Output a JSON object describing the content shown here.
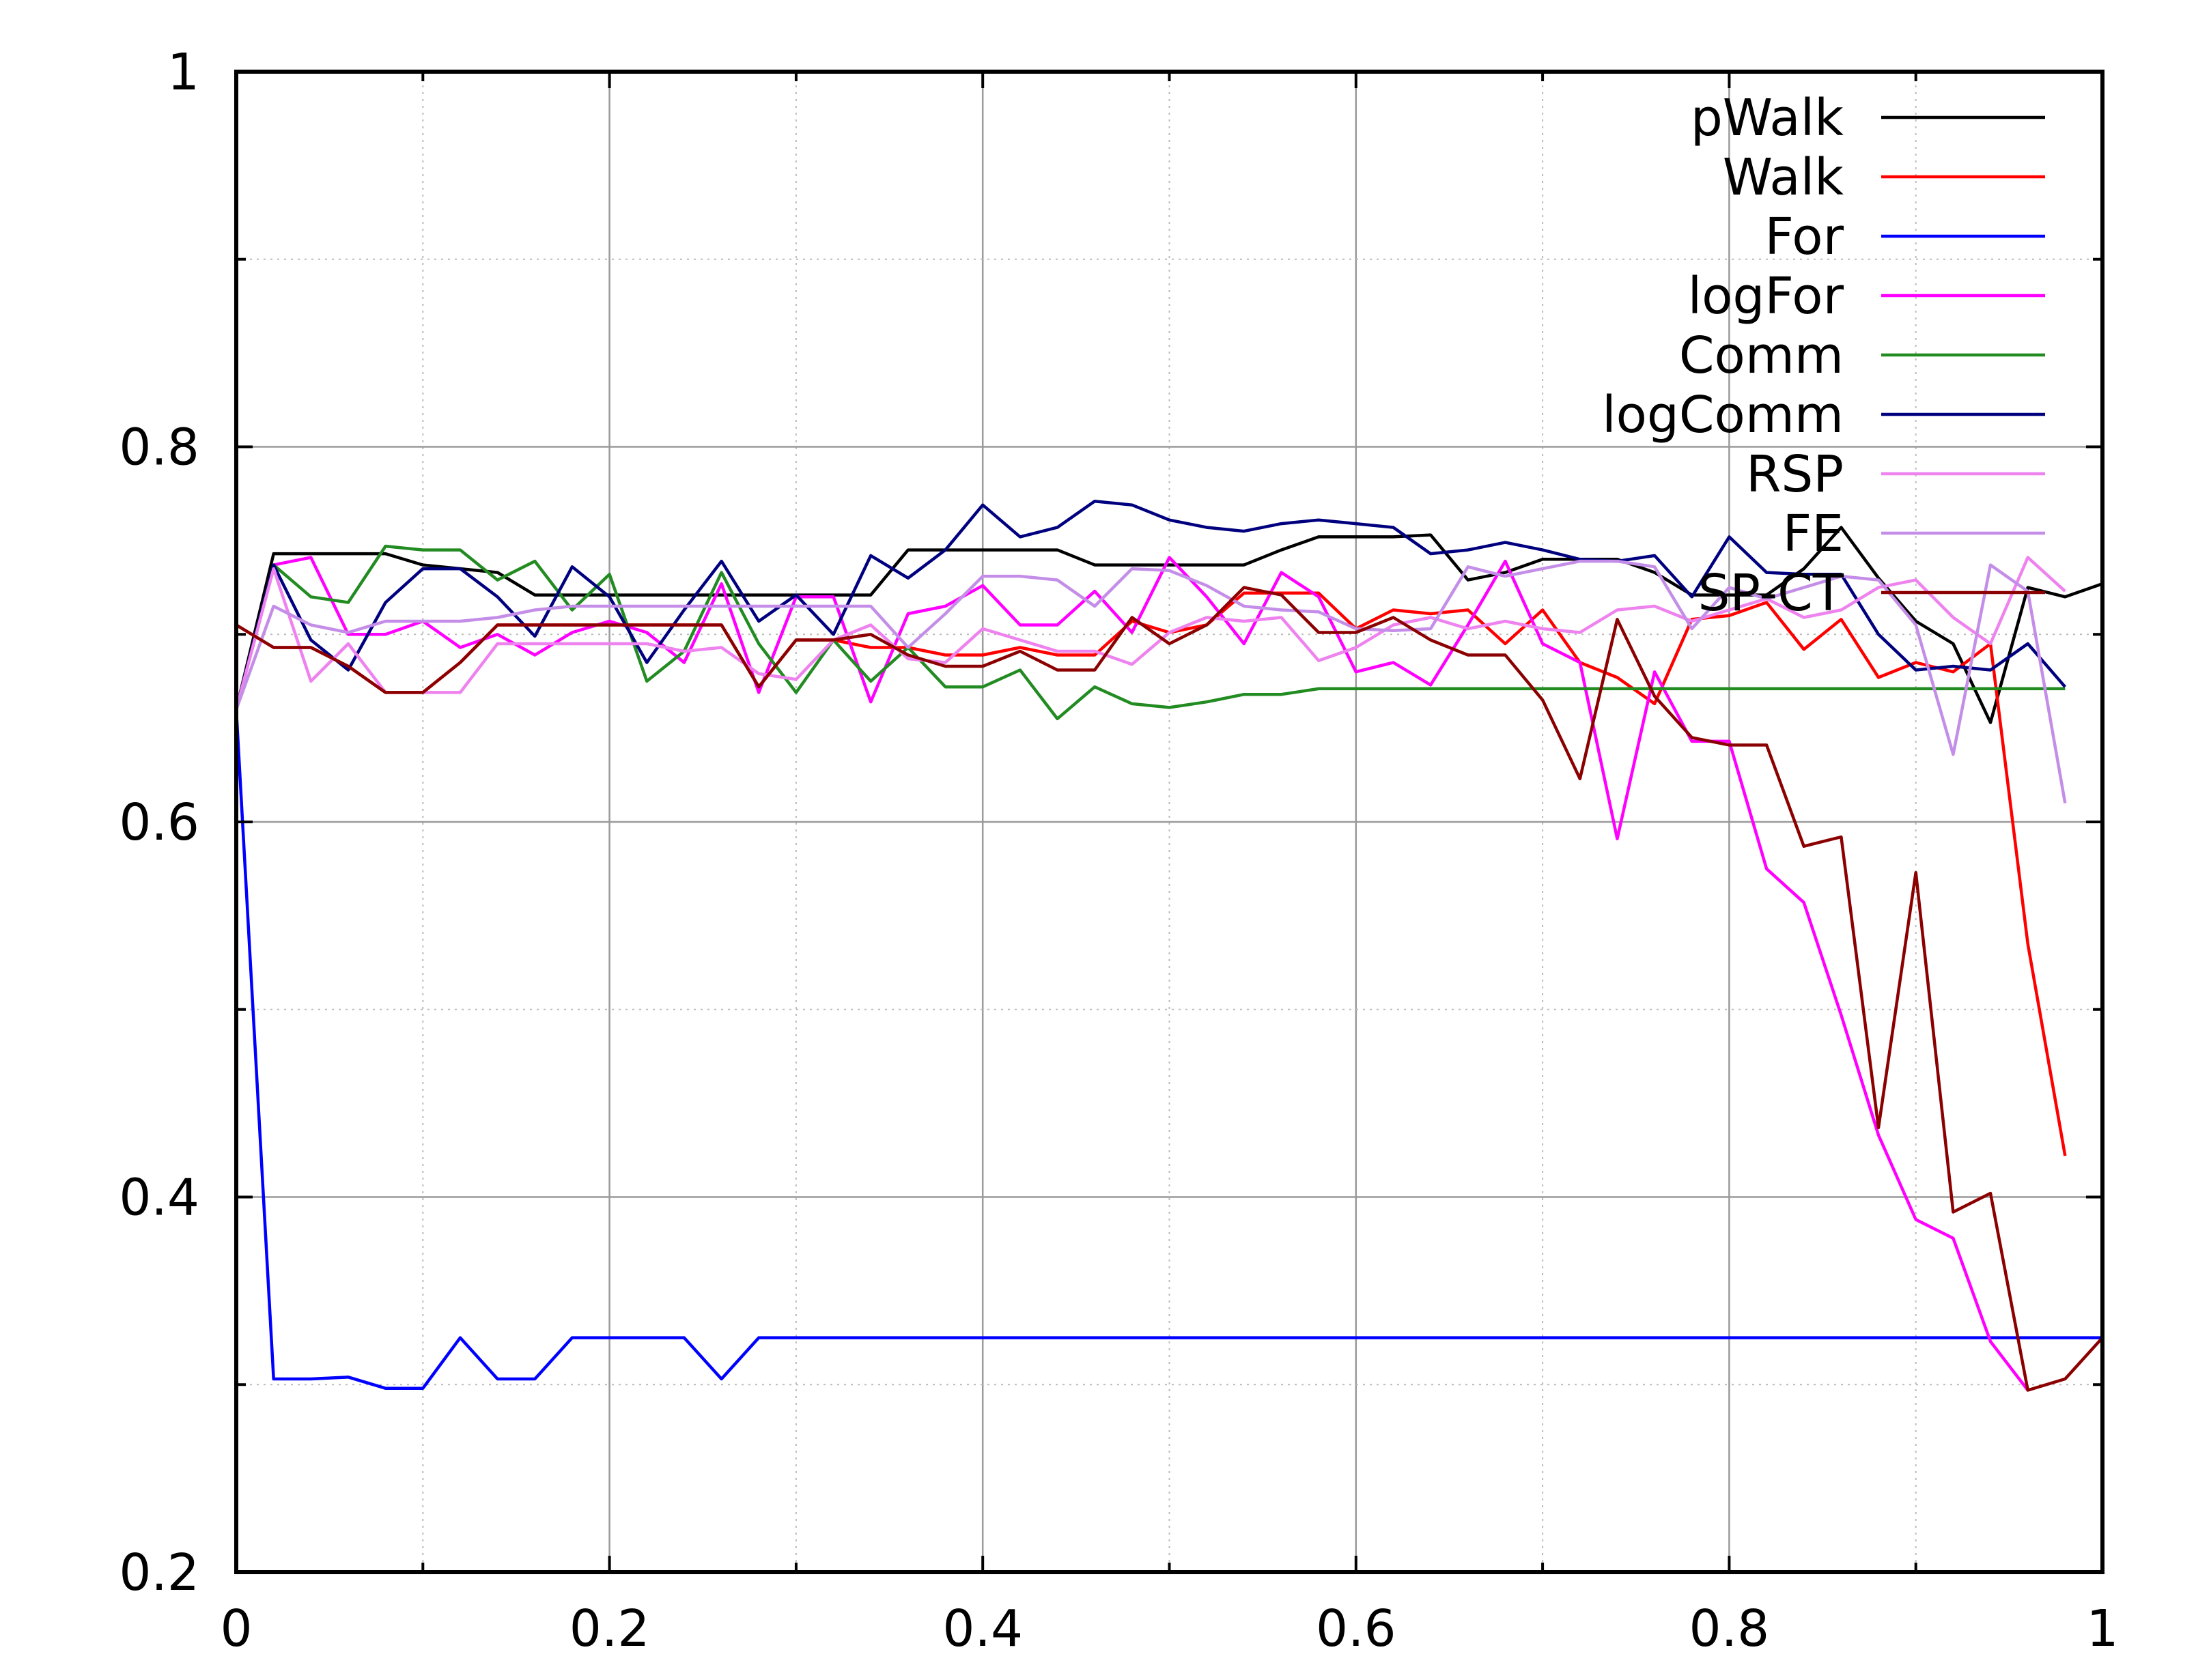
{
  "chart_data": {
    "type": "line",
    "title": "",
    "xlabel": "",
    "ylabel": "",
    "xlim": [
      0,
      1
    ],
    "ylim": [
      0.2,
      1
    ],
    "grid": true,
    "legend_position": "top-right",
    "x_ticks": [
      "0",
      "0.2",
      "0.4",
      "0.6",
      "0.8",
      "1"
    ],
    "y_ticks": [
      "0.2",
      "0.4",
      "0.6",
      "0.8",
      "1"
    ],
    "x": [
      0,
      0.02,
      0.04,
      0.06,
      0.08,
      0.1,
      0.12,
      0.14,
      0.16,
      0.18,
      0.2,
      0.22,
      0.24,
      0.26,
      0.28,
      0.3,
      0.32,
      0.34,
      0.36,
      0.38,
      0.4,
      0.42,
      0.44,
      0.46,
      0.48,
      0.5,
      0.52,
      0.54,
      0.56,
      0.58,
      0.6,
      0.62,
      0.64,
      0.66,
      0.68,
      0.7,
      0.72,
      0.74,
      0.76,
      0.78,
      0.8,
      0.82,
      0.84,
      0.86,
      0.88,
      0.9,
      0.92,
      0.94,
      0.96,
      0.98,
      1.0
    ],
    "series": [
      {
        "name": "pWalk",
        "color": "#000000",
        "values": [
          0.66,
          0.743,
          0.743,
          0.743,
          0.743,
          0.737,
          0.735,
          0.733,
          0.721,
          0.721,
          0.721,
          0.721,
          0.721,
          0.721,
          0.721,
          0.721,
          0.721,
          0.721,
          0.745,
          0.745,
          0.745,
          0.745,
          0.745,
          0.737,
          0.737,
          0.737,
          0.737,
          0.737,
          0.745,
          0.752,
          0.752,
          0.752,
          0.753,
          0.729,
          0.733,
          0.74,
          0.74,
          0.74,
          0.733,
          0.721,
          0.721,
          0.721,
          0.735,
          0.757,
          0.73,
          0.707,
          0.695,
          0.653,
          0.725,
          0.72,
          0.727
        ]
      },
      {
        "name": "Walk",
        "color": "#ff0000",
        "values": [
          0.705,
          0.693,
          0.693,
          0.683,
          0.669,
          0.669,
          0.685,
          0.705,
          0.705,
          0.705,
          0.705,
          0.705,
          0.705,
          0.705,
          0.672,
          0.697,
          0.697,
          0.693,
          0.693,
          0.689,
          0.689,
          0.693,
          0.689,
          0.689,
          0.707,
          0.701,
          0.705,
          0.722,
          0.722,
          0.722,
          0.703,
          0.713,
          0.711,
          0.713,
          0.695,
          0.713,
          0.685,
          0.677,
          0.663,
          0.708,
          0.71,
          0.717,
          0.692,
          0.708,
          0.677,
          0.685,
          0.68,
          0.695,
          0.535,
          0.422,
          null
        ]
      },
      {
        "name": "For",
        "color": "#0000ff",
        "values": [
          0.66,
          0.303,
          0.303,
          0.304,
          0.298,
          0.298,
          0.325,
          0.303,
          0.303,
          0.325,
          0.325,
          0.325,
          0.325,
          0.303,
          0.325,
          0.325,
          0.325,
          0.325,
          0.325,
          0.325,
          0.325,
          0.325,
          0.325,
          0.325,
          0.325,
          0.325,
          0.325,
          0.325,
          0.325,
          0.325,
          0.325,
          0.325,
          0.325,
          0.325,
          0.325,
          0.325,
          0.325,
          0.325,
          0.325,
          0.325,
          0.325,
          0.325,
          0.325,
          0.325,
          0.325,
          0.325,
          0.325,
          0.325,
          0.325,
          0.325,
          0.325
        ]
      },
      {
        "name": "logFor",
        "color": "#ff00ff",
        "values": [
          0.66,
          0.737,
          0.741,
          0.7,
          0.7,
          0.707,
          0.693,
          0.7,
          0.689,
          0.701,
          0.707,
          0.701,
          0.685,
          0.727,
          0.669,
          0.72,
          0.72,
          0.664,
          0.711,
          0.715,
          0.726,
          0.705,
          0.705,
          0.723,
          0.701,
          0.741,
          0.72,
          0.695,
          0.733,
          0.72,
          0.68,
          0.685,
          0.673,
          0.705,
          0.739,
          0.695,
          0.685,
          0.591,
          0.68,
          0.643,
          0.643,
          0.575,
          0.557,
          0.497,
          0.433,
          0.388,
          0.378,
          0.323,
          0.297,
          null,
          null
        ]
      },
      {
        "name": "Comm",
        "color": "#228b22",
        "values": [
          0.66,
          0.737,
          0.72,
          0.717,
          0.747,
          0.745,
          0.745,
          0.729,
          0.739,
          0.713,
          0.732,
          0.675,
          0.691,
          0.733,
          0.695,
          0.669,
          0.697,
          0.675,
          0.693,
          0.672,
          0.672,
          0.681,
          0.655,
          0.672,
          0.663,
          0.661,
          0.664,
          0.668,
          0.668,
          0.671,
          0.671,
          0.671,
          0.671,
          0.671,
          0.671,
          0.671,
          0.671,
          0.671,
          0.671,
          0.671,
          0.671,
          0.671,
          0.671,
          0.671,
          0.671,
          0.671,
          0.671,
          0.671,
          0.671,
          0.671,
          null
        ]
      },
      {
        "name": "logComm",
        "color": "#00007f",
        "values": [
          0.66,
          0.737,
          0.697,
          0.681,
          0.717,
          0.735,
          0.735,
          0.72,
          0.699,
          0.736,
          0.72,
          0.685,
          0.713,
          0.739,
          0.707,
          0.721,
          0.7,
          0.742,
          0.73,
          0.745,
          0.769,
          0.752,
          0.757,
          0.771,
          0.769,
          0.761,
          0.757,
          0.755,
          0.759,
          0.761,
          0.759,
          0.757,
          0.743,
          0.745,
          0.749,
          0.745,
          0.74,
          0.739,
          0.742,
          0.72,
          0.752,
          0.733,
          0.732,
          0.732,
          0.7,
          0.681,
          0.683,
          0.681,
          0.695,
          0.672,
          null
        ]
      },
      {
        "name": "RSP",
        "color": "#ee82ee",
        "values": [
          0.66,
          0.735,
          0.675,
          0.695,
          0.669,
          0.669,
          0.669,
          0.695,
          0.695,
          0.695,
          0.695,
          0.695,
          0.691,
          0.693,
          0.679,
          0.676,
          0.697,
          0.705,
          0.687,
          0.685,
          0.703,
          0.697,
          0.691,
          0.691,
          0.684,
          0.701,
          0.709,
          0.707,
          0.709,
          0.686,
          0.693,
          0.705,
          0.709,
          0.703,
          0.707,
          0.703,
          0.701,
          0.713,
          0.715,
          0.707,
          0.713,
          0.719,
          0.709,
          0.713,
          0.725,
          0.729,
          0.709,
          0.695,
          0.741,
          0.723,
          null
        ]
      },
      {
        "name": "FE",
        "color": "#c48ee8",
        "values": [
          0.66,
          0.715,
          0.705,
          0.701,
          0.707,
          0.707,
          0.707,
          0.709,
          0.713,
          0.715,
          0.715,
          0.715,
          0.715,
          0.715,
          0.715,
          0.715,
          0.715,
          0.715,
          0.693,
          0.711,
          0.731,
          0.731,
          0.729,
          0.715,
          0.735,
          0.734,
          0.726,
          0.715,
          0.713,
          0.712,
          0.703,
          0.702,
          0.703,
          0.736,
          0.731,
          0.735,
          0.739,
          0.739,
          0.736,
          0.703,
          0.725,
          0.719,
          0.725,
          0.731,
          0.729,
          0.705,
          0.636,
          0.737,
          0.723,
          0.61,
          null
        ]
      },
      {
        "name": "SP-CT",
        "color": "#8b0000",
        "values": [
          0.705,
          0.693,
          0.693,
          0.683,
          0.669,
          0.669,
          0.685,
          0.705,
          0.705,
          0.705,
          0.705,
          0.705,
          0.705,
          0.705,
          0.672,
          0.697,
          0.697,
          0.7,
          0.689,
          0.683,
          0.683,
          0.691,
          0.681,
          0.681,
          0.709,
          0.695,
          0.705,
          0.725,
          0.721,
          0.701,
          0.701,
          0.709,
          0.697,
          0.689,
          0.689,
          0.665,
          0.623,
          0.708,
          0.667,
          0.645,
          0.641,
          0.641,
          0.587,
          0.592,
          0.437,
          0.573,
          0.392,
          0.402,
          0.297,
          0.303,
          0.325
        ]
      }
    ]
  }
}
